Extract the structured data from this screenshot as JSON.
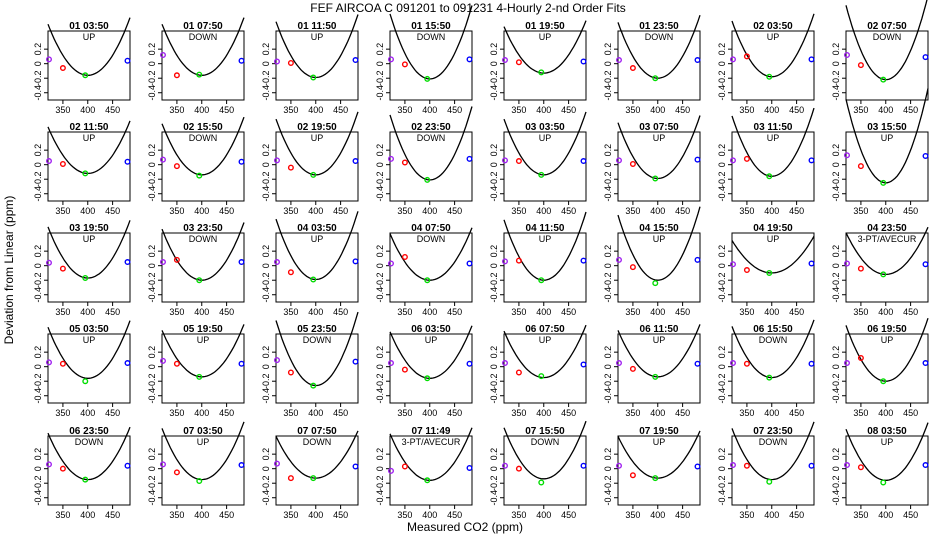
{
  "chart_data": {
    "type": "scatter",
    "title": "FEF   AIRCOA C   091201 to 091231   4-Hourly 2-nd Order Fits",
    "xlabel": "Measured CO2 (ppm)",
    "ylabel": "Deviation from Linear (ppm)",
    "xlim": [
      320,
      485
    ],
    "ylim": [
      -0.5,
      0.45
    ],
    "xticks": [
      350,
      400,
      450
    ],
    "yticks": [
      -0.4,
      -0.2,
      0.0,
      0.2
    ],
    "ytick_labels": [
      "-0.4",
      "-0.2",
      "0",
      "0.2"
    ],
    "x_points": [
      322,
      350,
      395,
      480
    ],
    "point_colors": [
      "#a020f0",
      "#ff0000",
      "#00dd00",
      "#0000ff"
    ],
    "curve_color": "#000000",
    "panels": [
      {
        "label": "01 03:50",
        "mode": "UP",
        "a": 0.00011,
        "vmin": -0.16,
        "pts": [
          0.06,
          -0.06,
          -0.16,
          0.04
        ]
      },
      {
        "label": "01 07:50",
        "mode": "DOWN",
        "a": 0.00011,
        "vmin": -0.16,
        "pts": [
          0.12,
          -0.16,
          -0.15,
          0.04
        ]
      },
      {
        "label": "01 11:50",
        "mode": "UP",
        "a": 0.00012,
        "vmin": -0.19,
        "pts": [
          0.03,
          0.01,
          -0.19,
          0.05
        ]
      },
      {
        "label": "01 15:50",
        "mode": "DOWN",
        "a": 0.00014,
        "vmin": -0.21,
        "pts": [
          0.06,
          -0.01,
          -0.21,
          0.06
        ]
      },
      {
        "label": "01 19:50",
        "mode": "UP",
        "a": 0.0001,
        "vmin": -0.13,
        "pts": [
          0.05,
          0.02,
          -0.12,
          0.03
        ]
      },
      {
        "label": "01 23:50",
        "mode": "DOWN",
        "a": 0.00012,
        "vmin": -0.2,
        "pts": [
          0.05,
          -0.06,
          -0.2,
          0.05
        ]
      },
      {
        "label": "02 03:50",
        "mode": "UP",
        "a": 0.00012,
        "vmin": -0.18,
        "pts": [
          0.06,
          0.1,
          -0.18,
          0.06
        ]
      },
      {
        "label": "02 07:50",
        "mode": "DOWN",
        "a": 0.00016,
        "vmin": -0.22,
        "pts": [
          0.12,
          -0.02,
          -0.22,
          0.09
        ]
      },
      {
        "label": "02 11:50",
        "mode": "UP",
        "a": 0.0001,
        "vmin": -0.12,
        "pts": [
          0.05,
          0.01,
          -0.12,
          0.04
        ]
      },
      {
        "label": "02 15:50",
        "mode": "DOWN",
        "a": 0.00011,
        "vmin": -0.14,
        "pts": [
          0.07,
          -0.02,
          -0.15,
          0.04
        ]
      },
      {
        "label": "02 19:50",
        "mode": "UP",
        "a": 0.00012,
        "vmin": -0.14,
        "pts": [
          0.06,
          -0.04,
          -0.14,
          0.05
        ]
      },
      {
        "label": "02 23:50",
        "mode": "DOWN",
        "a": 0.00014,
        "vmin": -0.21,
        "pts": [
          0.08,
          0.03,
          -0.21,
          0.08
        ]
      },
      {
        "label": "03 03:50",
        "mode": "UP",
        "a": 0.00012,
        "vmin": -0.14,
        "pts": [
          0.06,
          0.05,
          -0.14,
          0.05
        ]
      },
      {
        "label": "03 07:50",
        "mode": "UP",
        "a": 0.00012,
        "vmin": -0.19,
        "pts": [
          0.06,
          0.01,
          -0.19,
          0.07
        ]
      },
      {
        "label": "03 11:50",
        "mode": "UP",
        "a": 0.00013,
        "vmin": -0.16,
        "pts": [
          0.06,
          0.08,
          -0.16,
          0.06
        ]
      },
      {
        "label": "03 15:50",
        "mode": "UP",
        "a": 0.00018,
        "vmin": -0.25,
        "pts": [
          0.13,
          -0.02,
          -0.25,
          0.12
        ]
      },
      {
        "label": "03 19:50",
        "mode": "UP",
        "a": 0.00011,
        "vmin": -0.17,
        "pts": [
          0.04,
          -0.04,
          -0.17,
          0.05
        ]
      },
      {
        "label": "03 23:50",
        "mode": "DOWN",
        "a": 0.00011,
        "vmin": -0.2,
        "pts": [
          0.05,
          0.08,
          -0.2,
          0.05
        ]
      },
      {
        "label": "04 03:50",
        "mode": "UP",
        "a": 0.00013,
        "vmin": -0.19,
        "pts": [
          0.05,
          -0.09,
          -0.19,
          0.06
        ]
      },
      {
        "label": "04 07:50",
        "mode": "DOWN",
        "a": 0.0001,
        "vmin": -0.2,
        "pts": [
          0.03,
          0.12,
          -0.2,
          0.03
        ]
      },
      {
        "label": "04 11:50",
        "mode": "UP",
        "a": 0.00013,
        "vmin": -0.2,
        "pts": [
          0.06,
          0.07,
          -0.2,
          0.07
        ]
      },
      {
        "label": "04 15:50",
        "mode": "UP",
        "a": 0.00014,
        "vmin": -0.2,
        "pts": [
          0.08,
          -0.02,
          -0.24,
          0.08
        ]
      },
      {
        "label": "04 19:50",
        "mode": "UP",
        "a": 7e-05,
        "vmin": -0.1,
        "pts": [
          0.02,
          -0.06,
          -0.1,
          0.03
        ]
      },
      {
        "label": "04 23:50",
        "mode": "3-PT/AVECUR",
        "a": 9e-05,
        "vmin": -0.12,
        "pts": [
          0.03,
          -0.04,
          -0.12,
          0.02
        ]
      },
      {
        "label": "05 03:50",
        "mode": "UP",
        "a": 0.00011,
        "vmin": -0.16,
        "pts": [
          0.06,
          0.04,
          -0.2,
          0.05
        ]
      },
      {
        "label": "05 19:50",
        "mode": "UP",
        "a": 0.0001,
        "vmin": -0.14,
        "pts": [
          0.08,
          0.04,
          -0.14,
          0.04
        ]
      },
      {
        "label": "05 23:50",
        "mode": "DOWN",
        "a": 0.00014,
        "vmin": -0.26,
        "pts": [
          0.09,
          -0.08,
          -0.26,
          0.07
        ]
      },
      {
        "label": "06 03:50",
        "mode": "UP",
        "a": 0.0001,
        "vmin": -0.16,
        "pts": [
          0.05,
          -0.04,
          -0.16,
          0.04
        ]
      },
      {
        "label": "06 07:50",
        "mode": "UP",
        "a": 0.0001,
        "vmin": -0.15,
        "pts": [
          0.05,
          -0.08,
          -0.13,
          0.03
        ]
      },
      {
        "label": "06 11:50",
        "mode": "UP",
        "a": 0.0001,
        "vmin": -0.14,
        "pts": [
          0.05,
          -0.03,
          -0.14,
          0.04
        ]
      },
      {
        "label": "06 15:50",
        "mode": "DOWN",
        "a": 0.00011,
        "vmin": -0.15,
        "pts": [
          0.05,
          0.04,
          -0.15,
          0.04
        ]
      },
      {
        "label": "06 19:50",
        "mode": "UP",
        "a": 0.00012,
        "vmin": -0.2,
        "pts": [
          0.05,
          0.12,
          -0.2,
          0.05
        ]
      },
      {
        "label": "06 23:50",
        "mode": "DOWN",
        "a": 0.0001,
        "vmin": -0.15,
        "pts": [
          0.06,
          0.0,
          -0.15,
          0.04
        ]
      },
      {
        "label": "07 03:50",
        "mode": "UP",
        "a": 0.00011,
        "vmin": -0.15,
        "pts": [
          0.06,
          -0.05,
          -0.17,
          0.05
        ]
      },
      {
        "label": "07 07:50",
        "mode": "DOWN",
        "a": 9e-05,
        "vmin": -0.13,
        "pts": [
          0.07,
          -0.13,
          -0.13,
          0.03
        ]
      },
      {
        "label": "07 11:49",
        "mode": "3-PT/AVECUR",
        "a": 0.0001,
        "vmin": -0.16,
        "pts": [
          -0.03,
          0.03,
          -0.16,
          0.01
        ]
      },
      {
        "label": "07 15:50",
        "mode": "DOWN",
        "a": 0.00011,
        "vmin": -0.14,
        "pts": [
          0.04,
          0.0,
          -0.19,
          0.04
        ]
      },
      {
        "label": "07 19:50",
        "mode": "UP",
        "a": 9e-05,
        "vmin": -0.13,
        "pts": [
          0.04,
          -0.09,
          -0.13,
          0.03
        ]
      },
      {
        "label": "07 23:50",
        "mode": "DOWN",
        "a": 0.00011,
        "vmin": -0.15,
        "pts": [
          0.05,
          0.04,
          -0.18,
          0.04
        ]
      },
      {
        "label": "08 03:50",
        "mode": "UP",
        "a": 0.00011,
        "vmin": -0.16,
        "pts": [
          0.05,
          0.02,
          -0.19,
          0.05
        ]
      }
    ]
  }
}
